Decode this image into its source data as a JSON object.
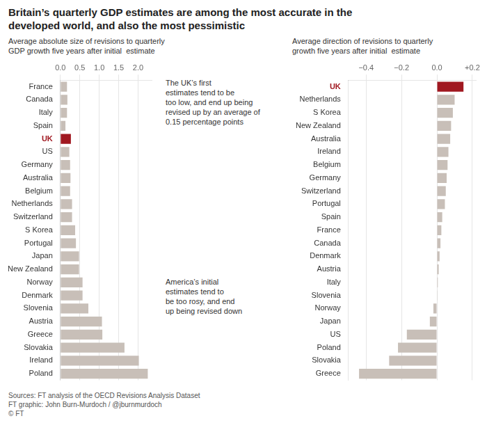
{
  "title": "Britain’s quarterly GDP estimates are among the most accurate in the\ndeveloped world, and also the most pessimistic",
  "sources": "Sources: FT analysis of the OECD Revisions Analysis Dataset\nFT graphic: John Burn-Murdoch / @jburnmurdoch\n© FT",
  "chart_data": [
    {
      "type": "bar",
      "orientation": "horizontal",
      "subtitle": "Average absolute size of revisions to quarterly\nGDP growth five years after initial  estimate",
      "categories": [
        "France",
        "Canada",
        "Italy",
        "Spain",
        "UK",
        "US",
        "Germany",
        "Australia",
        "Belgium",
        "Netherlands",
        "Switzerland",
        "S Korea",
        "Portugal",
        "Japan",
        "New Zealand",
        "Norway",
        "Denmark",
        "Slovenia",
        "Austria",
        "Greece",
        "Slovakia",
        "Ireland",
        "Poland"
      ],
      "values": [
        0.17,
        0.18,
        0.17,
        0.13,
        0.27,
        0.23,
        0.25,
        0.26,
        0.25,
        0.3,
        0.3,
        0.38,
        0.4,
        0.48,
        0.48,
        0.57,
        0.57,
        0.72,
        1.07,
        1.08,
        1.65,
        2.02,
        2.25
      ],
      "colors": [
        "#c8bfb8",
        "#c8bfb8",
        "#c8bfb8",
        "#c8bfb8",
        "#a01820",
        "#c8bfb8",
        "#c8bfb8",
        "#c8bfb8",
        "#c8bfb8",
        "#c8bfb8",
        "#c8bfb8",
        "#c8bfb8",
        "#c8bfb8",
        "#c8bfb8",
        "#c8bfb8",
        "#c8bfb8",
        "#c8bfb8",
        "#c8bfb8",
        "#c8bfb8",
        "#c8bfb8",
        "#c8bfb8",
        "#c8bfb8",
        "#c8bfb8"
      ],
      "xlim": [
        0,
        2.35
      ],
      "xticks": [
        {
          "value": 0,
          "label": "0.0"
        },
        0.5,
        {
          "value": 1,
          "label": "1.0"
        },
        1.5,
        {
          "value": 2,
          "label": "2.0"
        }
      ],
      "grid": true
    },
    {
      "type": "bar",
      "orientation": "horizontal",
      "subtitle": "Average direction of revisions to quarterly\ngrowth five years after initial  estimate",
      "categories": [
        "UK",
        "Netherlands",
        "S Korea",
        "New Zealand",
        "Australia",
        "Ireland",
        "Belgium",
        "Germany",
        "Switzerland",
        "Portugal",
        "Spain",
        "France",
        "Canada",
        "Denmark",
        "Austria",
        "Italy",
        "Slovenia",
        "Norway",
        "Japan",
        "US",
        "Poland",
        "Slovakia",
        "Greece"
      ],
      "values": [
        0.15,
        0.1,
        0.09,
        0.08,
        0.075,
        0.065,
        0.06,
        0.055,
        0.05,
        0.045,
        0.03,
        0.025,
        0.02,
        0.015,
        0.01,
        0.005,
        0.003,
        -0.02,
        -0.04,
        -0.17,
        -0.22,
        -0.27,
        -0.44
      ],
      "colors": [
        "#a01820",
        "#c8bfb8",
        "#c8bfb8",
        "#c8bfb8",
        "#c8bfb8",
        "#c8bfb8",
        "#c8bfb8",
        "#c8bfb8",
        "#c8bfb8",
        "#c8bfb8",
        "#c8bfb8",
        "#c8bfb8",
        "#c8bfb8",
        "#c8bfb8",
        "#c8bfb8",
        "#c8bfb8",
        "#c8bfb8",
        "#c8bfb8",
        "#c8bfb8",
        "#c8bfb8",
        "#c8bfb8",
        "#c8bfb8",
        "#c8bfb8"
      ],
      "xlim": [
        -0.5,
        0.22
      ],
      "xticks": [
        {
          "value": -0.4,
          "label": "−0.4"
        },
        {
          "value": -0.2,
          "label": "−0.2"
        },
        {
          "value": 0.0,
          "label": "0.0"
        },
        {
          "value": 0.2,
          "label": "+0.2"
        }
      ],
      "grid": true,
      "annotations": [
        "The UK’s first\nestimates tend to be\ntoo low, and end up being\nrevised up by an average of\n0.15 percentage points",
        "America’s initial\nestimates tend to\nbe too rosy, and end\nup being revised down"
      ]
    }
  ]
}
